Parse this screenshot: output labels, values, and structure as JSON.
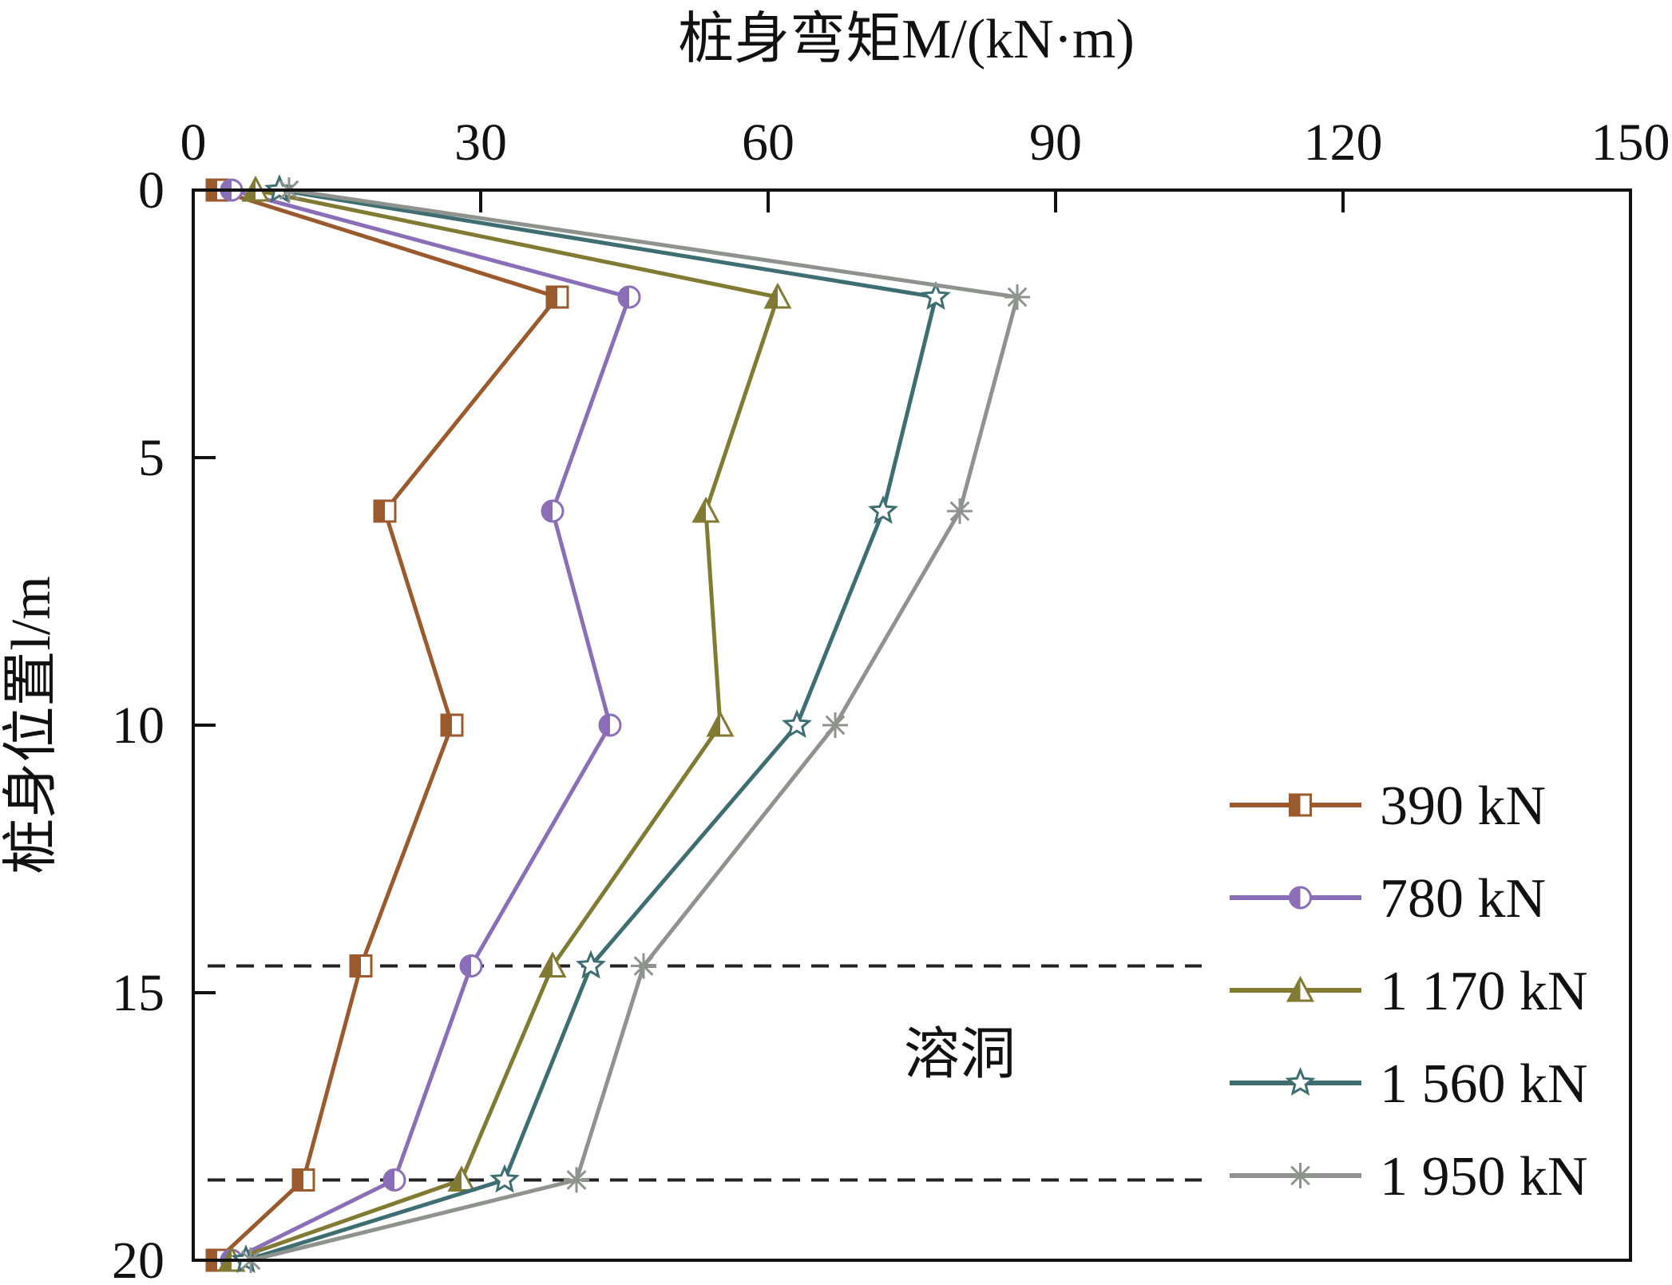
{
  "chart_data": {
    "type": "line",
    "xlabel": "桩身弯矩M/(kN·m)",
    "ylabel": "桩身位置l/m",
    "xlim": [
      0,
      150
    ],
    "ylim": [
      0,
      20
    ],
    "x_axis_position": "top",
    "y_axis_inverted": true,
    "x_ticks": [
      0,
      30,
      60,
      90,
      120,
      150
    ],
    "y_ticks": [
      0,
      5,
      10,
      15,
      20
    ],
    "x_tick_labels": [
      "0",
      "30",
      "60",
      "90",
      "120",
      "150"
    ],
    "y_tick_labels": [
      "0",
      "5",
      "10",
      "15",
      "20"
    ],
    "depths": [
      0,
      2,
      6,
      10,
      14.5,
      18.5,
      20
    ],
    "series": [
      {
        "name": "390 kN",
        "color": "#9b5a2e",
        "marker": "square-half",
        "moments": [
          2.5,
          38,
          20,
          27,
          17.5,
          11.5,
          2.5
        ]
      },
      {
        "name": "780 kN",
        "color": "#8a6fb8",
        "marker": "circle-half",
        "moments": [
          4,
          45.5,
          37.5,
          43.5,
          29,
          21,
          4
        ]
      },
      {
        "name": "1 170 kN",
        "color": "#807a33",
        "marker": "triangle-half",
        "moments": [
          6.5,
          61,
          53.5,
          55,
          37.5,
          28,
          4
        ]
      },
      {
        "name": "1 560 kN",
        "color": "#3e6e72",
        "marker": "star",
        "moments": [
          9,
          77.5,
          72,
          63,
          41.5,
          32.5,
          5.5
        ]
      },
      {
        "name": "1 950 kN",
        "color": "#8e948d",
        "marker": "asterisk",
        "moments": [
          10,
          86,
          80,
          67,
          47,
          40,
          6
        ]
      }
    ],
    "reference_lines": [
      {
        "depth": 14.5,
        "style": "dashed"
      },
      {
        "depth": 18.5,
        "style": "dashed"
      }
    ],
    "annotations": [
      {
        "text": "溶洞",
        "x": 80,
        "y": 16.5
      }
    ],
    "legend_position": "bottom-right"
  }
}
